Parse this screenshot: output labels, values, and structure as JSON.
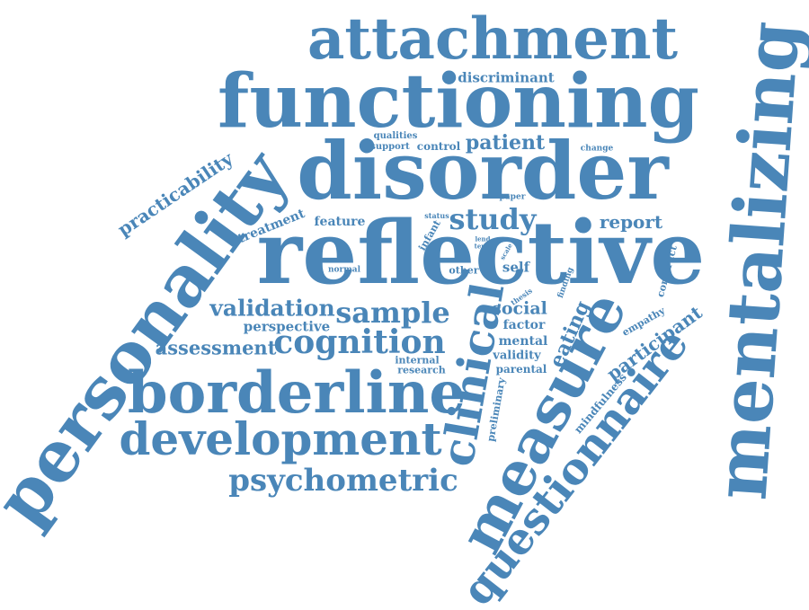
{
  "cloud": {
    "color": "#4a86b8",
    "words": {
      "attachment": "attachment",
      "functioning": "functioning",
      "disorder": "disorder",
      "reflective": "reflective",
      "personality": "personality",
      "mentalizing": "mentalizing",
      "borderline": "borderline",
      "development": "development",
      "measure": "measure",
      "questionnaire": "questionnaire",
      "clinical": "clinical",
      "psychometric": "psychometric",
      "cognition": "cognition",
      "sample": "sample",
      "validation": "validation",
      "study": "study",
      "practicability": "practicability",
      "assessment": "assessment",
      "patient": "patient",
      "report": "report",
      "discriminant": "discriminant",
      "participant": "participant",
      "social": "social",
      "eating": "eating",
      "perspective": "perspective",
      "treatment": "treatment",
      "feature": "feature",
      "self": "self",
      "factor": "factor",
      "mental": "mental",
      "validity": "validity",
      "parental": "parental",
      "internal": "internal",
      "research": "research",
      "mindfulness": "mindfulness",
      "empathy": "empathy",
      "construct": "construct",
      "preliminary": "preliminary",
      "qualities": "qualities",
      "support": "support",
      "control": "control",
      "change": "change",
      "paper": "paper",
      "status": "status",
      "infant": "infant",
      "lend": "lend",
      "term": "term",
      "scale": "scale",
      "normal": "normal",
      "other": "other",
      "thesis": "thesis",
      "finding": "finding"
    }
  }
}
